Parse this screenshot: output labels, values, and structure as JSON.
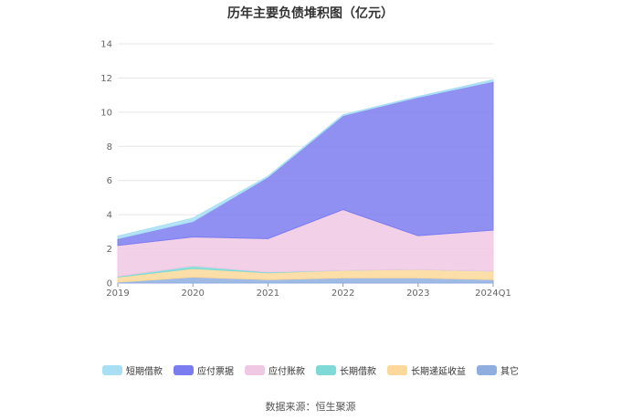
{
  "chart_data": {
    "type": "area",
    "title": "历年主要负债堆积图（亿元）",
    "categories": [
      "2019",
      "2020",
      "2021",
      "2022",
      "2023",
      "2024Q1"
    ],
    "ylim": [
      0,
      14
    ],
    "yticks": [
      0,
      2,
      4,
      6,
      8,
      10,
      12,
      14
    ],
    "stacked": true,
    "grid": true,
    "legend_position": "bottom",
    "series": [
      {
        "name": "其它",
        "color": "#8eaee0",
        "values": [
          0.05,
          0.35,
          0.2,
          0.3,
          0.3,
          0.2
        ]
      },
      {
        "name": "长期递延收益",
        "color": "#fcd89a",
        "values": [
          0.3,
          0.5,
          0.4,
          0.45,
          0.5,
          0.5
        ]
      },
      {
        "name": "长期借款",
        "color": "#7fd9d6",
        "values": [
          0.05,
          0.15,
          0.05,
          0.0,
          0.0,
          0.0
        ]
      },
      {
        "name": "应付账款",
        "color": "#f0c8e4",
        "values": [
          1.8,
          1.7,
          1.95,
          3.55,
          1.97,
          2.4
        ]
      },
      {
        "name": "应付票据",
        "color": "#7b7cf0",
        "values": [
          0.4,
          0.9,
          3.6,
          5.5,
          8.1,
          8.7
        ]
      },
      {
        "name": "短期借款",
        "color": "#a9dff5",
        "values": [
          0.15,
          0.2,
          0.05,
          0.05,
          0.05,
          0.1
        ]
      }
    ],
    "legend_order": [
      "短期借款",
      "应付票据",
      "应付账款",
      "长期借款",
      "长期递延收益",
      "其它"
    ]
  },
  "source": "数据来源：恒生聚源"
}
